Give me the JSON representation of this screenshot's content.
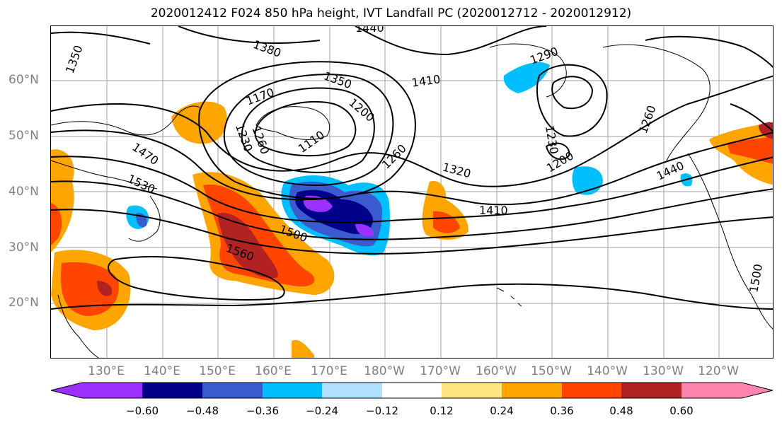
{
  "title": "2020012412 F024 850 hPa height, IVT Landfall PC (2020012712 - 2020012912)",
  "lat_labels": [
    "60°N",
    "50°N",
    "40°N",
    "30°N",
    "20°N"
  ],
  "lon_labels": [
    "130°E",
    "140°E",
    "150°E",
    "160°E",
    "170°E",
    "180°W",
    "170°W",
    "160°W",
    "150°W",
    "140°W",
    "130°W",
    "120°W"
  ],
  "contour_labels": [
    "1440",
    "1350",
    "1380",
    "1290",
    "1350",
    "1410",
    "1170",
    "1200",
    "1260",
    "1110",
    "1200",
    "1230",
    "1260",
    "1260",
    "1230",
    "1320",
    "1470",
    "1530",
    "1410",
    "1440",
    "1500",
    "1560",
    "1500"
  ],
  "colorbar": {
    "ticks": [
      "−0.60",
      "−0.48",
      "−0.36",
      "−0.24",
      "−0.12",
      "0.12",
      "0.24",
      "0.36",
      "0.48",
      "0.60"
    ],
    "colors": [
      "#9b30ff",
      "#00008b",
      "#3a5bd0",
      "#00bfff",
      "#b0e0ff",
      "#ffffff",
      "#ffe680",
      "#ffa500",
      "#ff4500",
      "#b22222",
      "#ff85b0"
    ]
  }
}
